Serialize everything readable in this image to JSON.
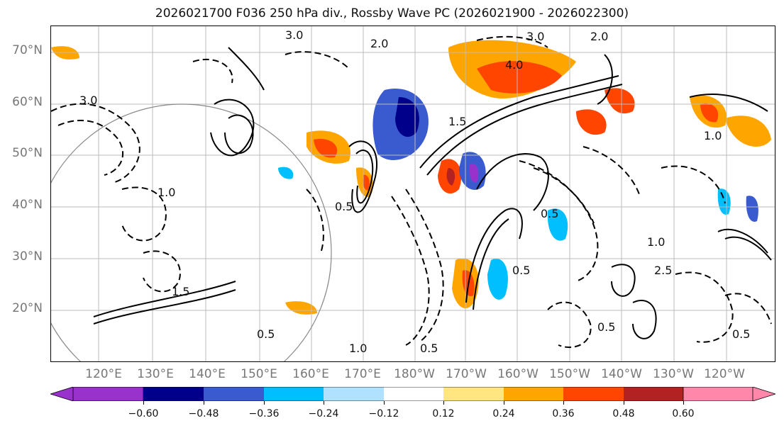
{
  "title": "2026021700 F036 250 hPa div., Rossby Wave PC (2026021900 - 2026022300)",
  "lat_labels": [
    "70°N",
    "60°N",
    "50°N",
    "40°N",
    "30°N",
    "20°N"
  ],
  "lon_labels": [
    "120°E",
    "130°E",
    "140°E",
    "150°E",
    "160°E",
    "170°E",
    "180°W",
    "170°W",
    "160°W",
    "150°W",
    "140°W",
    "130°W",
    "120°W"
  ],
  "colorbar": {
    "ticks": [
      "−0.60",
      "−0.48",
      "−0.36",
      "−0.24",
      "−0.12",
      "0.12",
      "0.24",
      "0.36",
      "0.48",
      "0.60"
    ],
    "colors": [
      "#9932cc",
      "#00008b",
      "#3a5bd0",
      "#00bfff",
      "#b0e2ff",
      "#ffffff",
      "#ffe680",
      "#ffa500",
      "#ff4500",
      "#b22222",
      "#ff88aa"
    ]
  },
  "contour_labels": [
    "3.0",
    "2.0",
    "1.0",
    "0.5",
    "4.0",
    "1.5",
    "2.5"
  ]
}
